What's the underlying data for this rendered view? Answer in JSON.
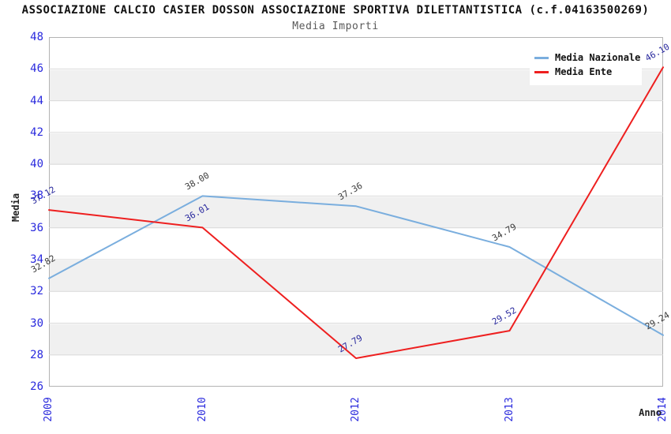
{
  "header": {
    "title": "ASSOCIAZIONE CALCIO CASIER DOSSON ASSOCIAZIONE SPORTIVA DILETTANTISTICA (c.f.04163500269)",
    "subtitle": "Media Importi"
  },
  "legend": {
    "items": [
      {
        "label": "Media Nazionale"
      },
      {
        "label": "Media Ente"
      }
    ]
  },
  "axes": {
    "y_title": "Media",
    "x_title": "Anno",
    "y_tick_labels": [
      "48",
      "46",
      "44",
      "42",
      "40",
      "38",
      "36",
      "34",
      "32",
      "30",
      "28",
      "26"
    ],
    "x_tick_labels": [
      "2009",
      "2010",
      "2012",
      "2013",
      "2014"
    ],
    "tick_color": "#2929dd"
  },
  "colors": {
    "band_gray": "#f0f0f0",
    "plot_border": "#b3b3b3",
    "gridline": "#dcdcdc",
    "nazionale_line": "#7aaede",
    "ente_line": "#ee1f1f",
    "nazionale_point_label": "#3c3c3c",
    "ente_point_label": "#29299e"
  },
  "chart_data": {
    "type": "line",
    "title": "ASSOCIAZIONE CALCIO CASIER DOSSON ASSOCIAZIONE SPORTIVA DILETTANTISTICA (c.f.04163500269)",
    "subtitle": "Media Importi",
    "xlabel": "Anno",
    "ylabel": "Media",
    "categories": [
      "2009",
      "2010",
      "2012",
      "2013",
      "2014"
    ],
    "series": [
      {
        "name": "Media Nazionale",
        "color": "#7aaede",
        "label_color": "#3c3c3c",
        "values": [
          32.82,
          38.0,
          37.36,
          34.79,
          29.24
        ],
        "point_labels": [
          "32.82",
          "38.00",
          "37.36",
          "34.79",
          "29.24"
        ]
      },
      {
        "name": "Media Ente",
        "color": "#ee1f1f",
        "label_color": "#29299e",
        "values": [
          37.12,
          36.01,
          27.79,
          29.52,
          46.1
        ],
        "point_labels": [
          "37.12",
          "36.01",
          "27.79",
          "29.52",
          "46.10"
        ]
      }
    ],
    "ylim": [
      26,
      48
    ],
    "ytick_step": 2,
    "grid": "horizontal-bands",
    "legend_position": "top-right"
  }
}
